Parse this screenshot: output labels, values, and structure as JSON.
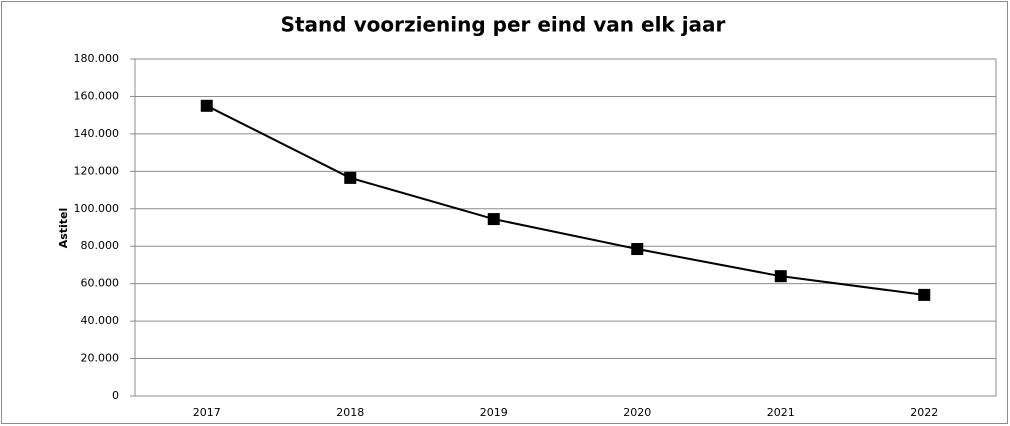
{
  "chart_data": {
    "type": "line",
    "title": "Stand voorziening per eind van elk jaar",
    "y_label": "Astitel",
    "categories": [
      "2017",
      "2018",
      "2019",
      "2020",
      "2021",
      "2022"
    ],
    "values": [
      155000,
      116500,
      94500,
      78500,
      64000,
      54000
    ],
    "color": "#000000",
    "ylim": [
      0,
      180000
    ],
    "yticks": [
      0,
      {
        "value": 20000,
        "label": "20.000"
      },
      {
        "value": 40000,
        "label": "40.000"
      },
      {
        "value": 60000,
        "label": "60.000"
      },
      {
        "value": 80000,
        "label": "80.000"
      },
      {
        "value": 100000,
        "label": "100.000"
      },
      {
        "value": 120000,
        "label": "120.000"
      },
      {
        "value": 140000,
        "label": "140.000"
      },
      {
        "value": 160000,
        "label": "160.000"
      },
      {
        "value": 180000,
        "label": "180.000"
      }
    ],
    "grid": true
  }
}
